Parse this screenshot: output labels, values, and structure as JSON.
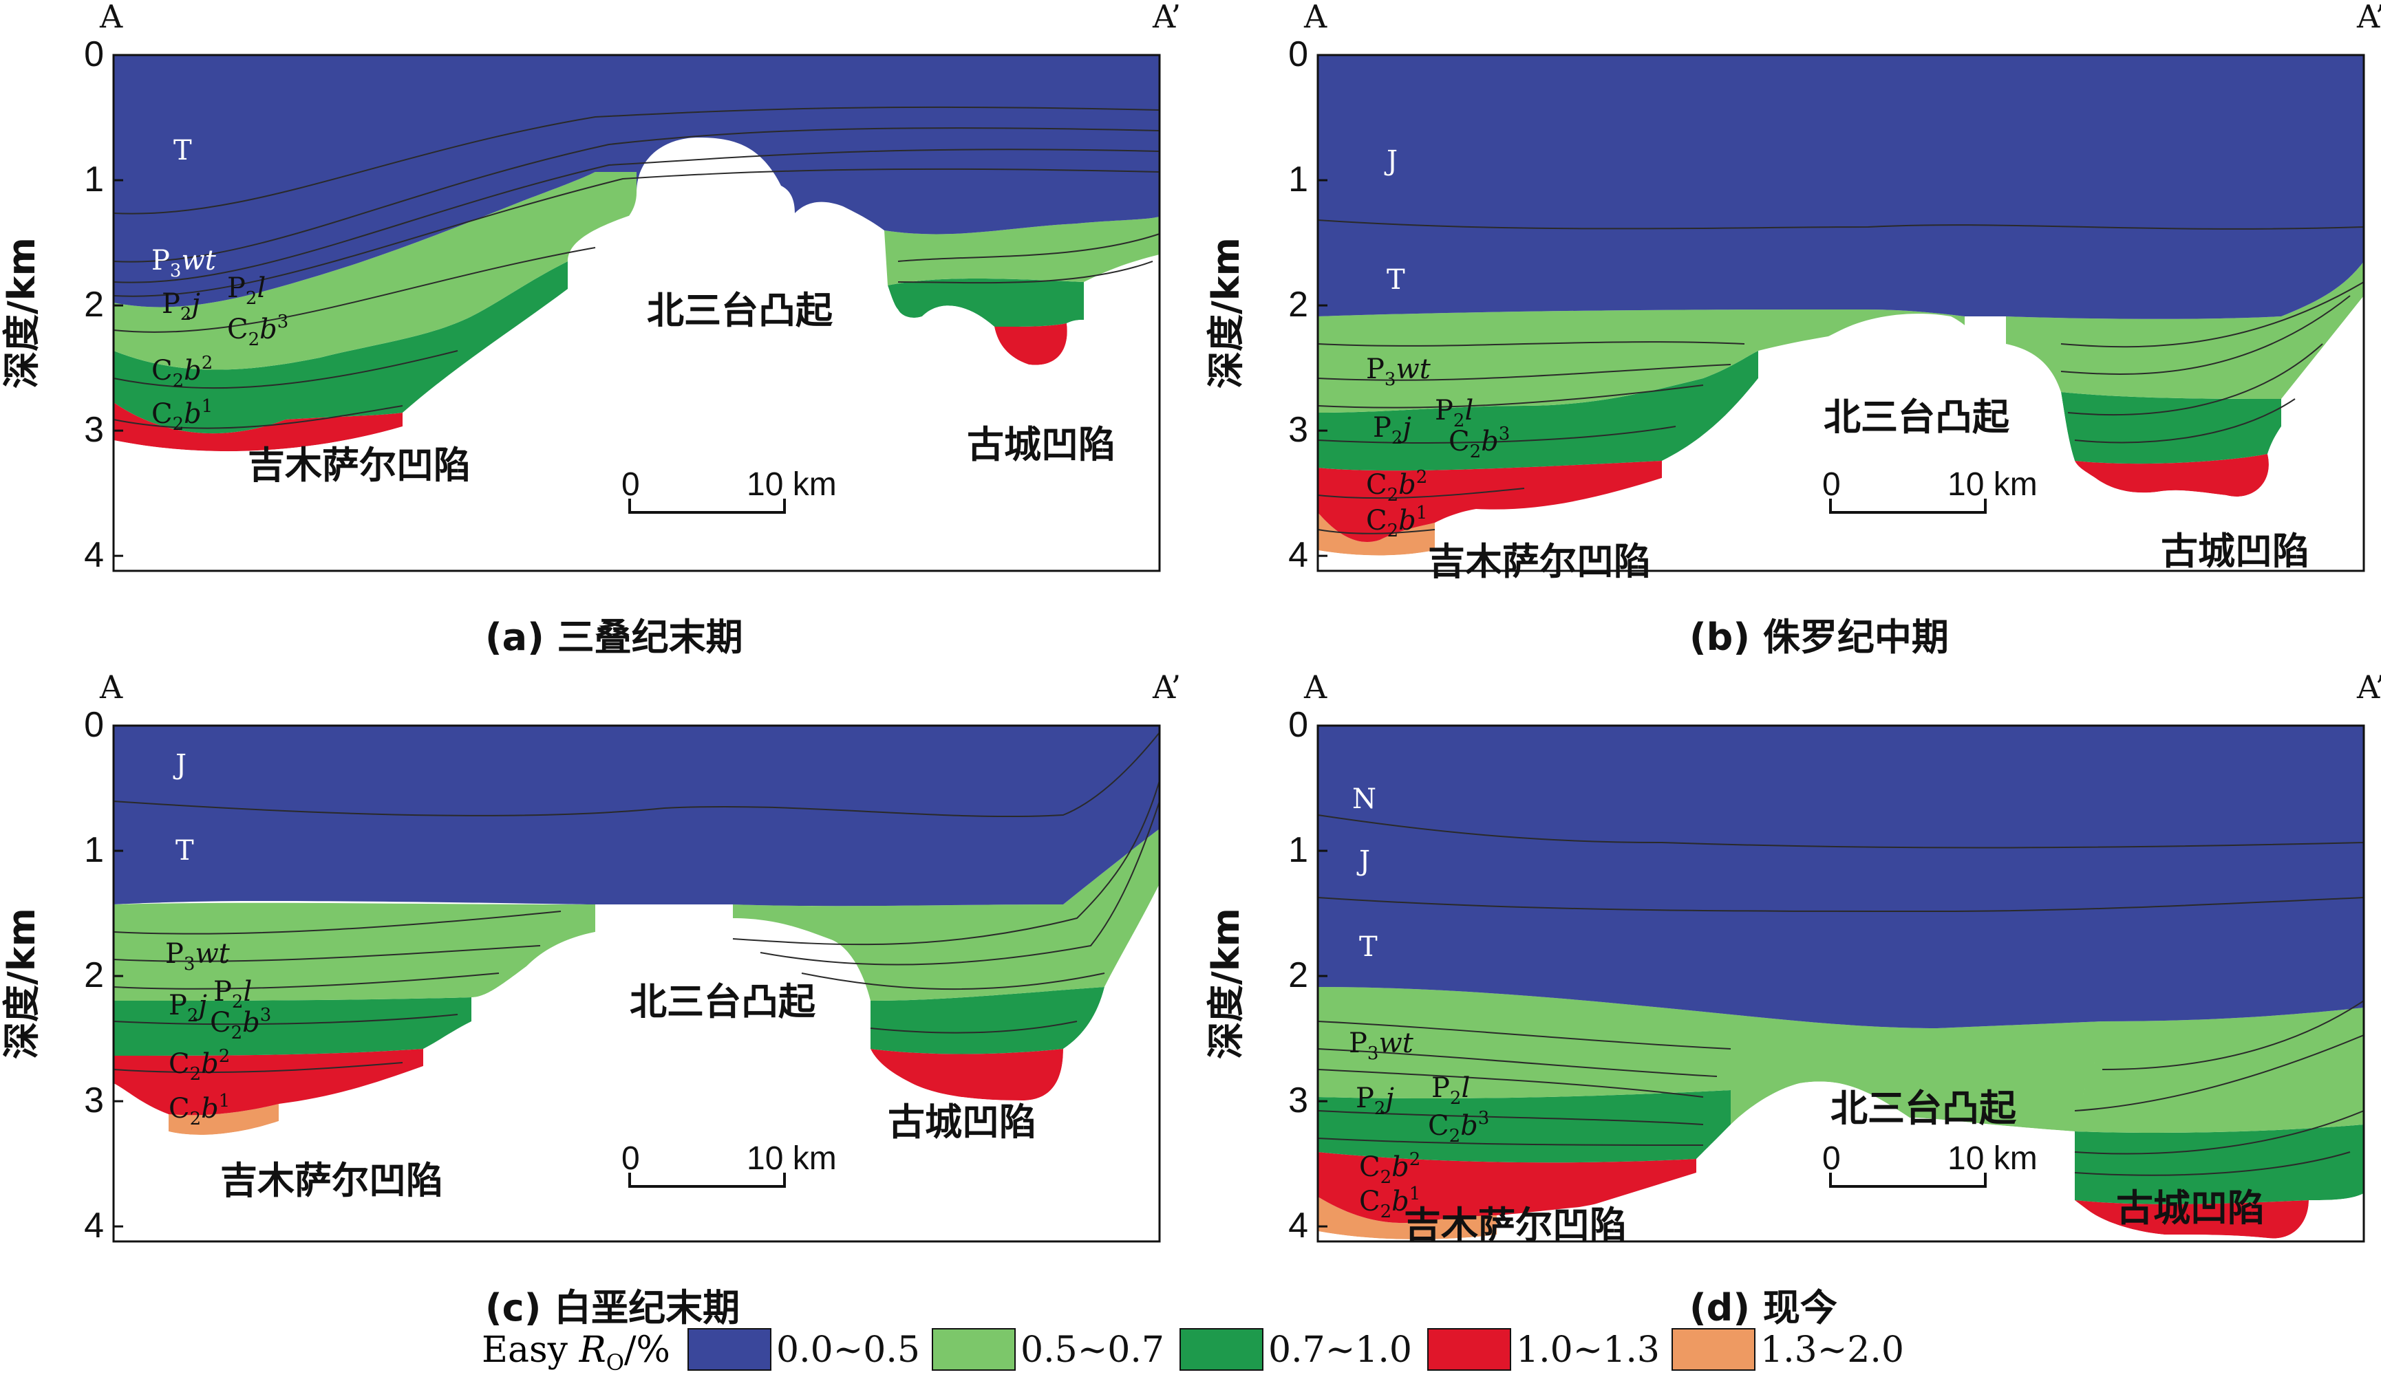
{
  "colors": {
    "r0": "#3a479b",
    "r1": "#7cc76a",
    "r2": "#1e9a4c",
    "r3": "#e0162a",
    "r4": "#ee9a62",
    "contour": "#2a2a2a"
  },
  "common": {
    "y_axis_label": "深度/km",
    "y_ticks": [
      "0",
      "1",
      "2",
      "3",
      "4"
    ],
    "left_label": "A",
    "right_label": "A’",
    "scale_start": "0",
    "scale_end": "10 km",
    "uplift_label": "北三台凸起",
    "basin_w_label": "吉木萨尔凹陷",
    "basin_e_label": "古城凹陷"
  },
  "panels": [
    {
      "caption": "(a)  三叠纪末期",
      "strata": [
        "T",
        "P3wt",
        "P2l",
        "P2j",
        "C2b3",
        "C2b2",
        "C2b1"
      ]
    },
    {
      "caption": "(b)  侏罗纪中期",
      "strata": [
        "J",
        "T",
        "P3wt",
        "P2l",
        "P2j",
        "C2b3",
        "C2b2",
        "C2b1"
      ]
    },
    {
      "caption": "(c)  白垩纪末期",
      "strata": [
        "J",
        "T",
        "P3wt",
        "P2l",
        "P2j",
        "C2b3",
        "C2b2",
        "C2b1"
      ]
    },
    {
      "caption": "(d)  现今",
      "strata": [
        "N",
        "J",
        "T",
        "P3wt",
        "P2l",
        "P2j",
        "C2b3",
        "C2b2",
        "C2b1"
      ]
    }
  ],
  "legend": {
    "title": "Easy R",
    "title_sub": "O",
    "title_unit": "/%",
    "items": [
      {
        "range": "0.0~0.5",
        "color": "#3a479b"
      },
      {
        "range": "0.5~0.7",
        "color": "#7cc76a"
      },
      {
        "range": "0.7~1.0",
        "color": "#1e9a4c"
      },
      {
        "range": "1.0~1.3",
        "color": "#e0162a"
      },
      {
        "range": "1.3~2.0",
        "color": "#ee9a62"
      }
    ]
  }
}
